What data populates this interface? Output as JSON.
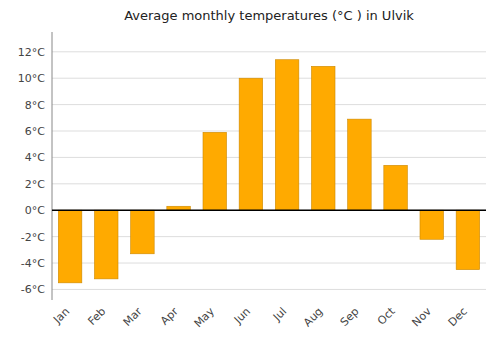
{
  "chart_data": {
    "type": "bar",
    "title": "Average monthly temperatures (°C ) in Ulvik",
    "categories": [
      "Jan",
      "Feb",
      "Mar",
      "Apr",
      "May",
      "Jun",
      "Jul",
      "Aug",
      "Sep",
      "Oct",
      "Nov",
      "Dec"
    ],
    "values": [
      -5.5,
      -5.2,
      -3.3,
      0.3,
      5.9,
      10.0,
      11.4,
      10.9,
      6.9,
      3.4,
      -2.2,
      -4.5
    ],
    "color": "#FFAA00",
    "ylim": [
      -6.8,
      13.5
    ],
    "yticks": [
      {
        "value": -6,
        "label": "-6°C"
      },
      {
        "value": -4,
        "label": "-4°C"
      },
      {
        "value": -2,
        "label": "-2°C"
      },
      {
        "value": 0,
        "label": "0°C"
      },
      {
        "value": 2,
        "label": "2°C"
      },
      {
        "value": 4,
        "label": "4°C"
      },
      {
        "value": 6,
        "label": "6°C"
      },
      {
        "value": 8,
        "label": "8°C"
      },
      {
        "value": 10,
        "label": "10°C"
      },
      {
        "value": 12,
        "label": "12°C"
      }
    ],
    "grid": true
  }
}
